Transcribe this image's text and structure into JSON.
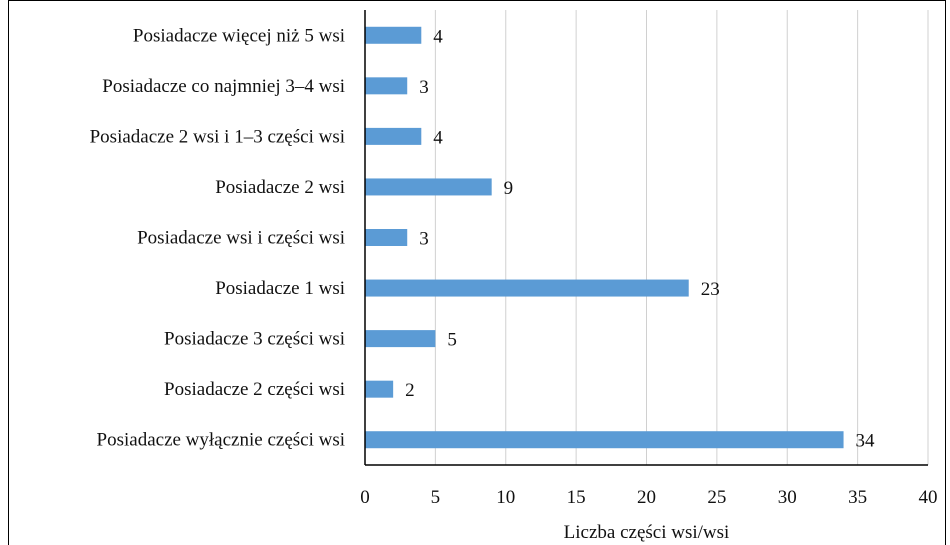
{
  "chart_data": {
    "type": "bar",
    "orientation": "horizontal",
    "categories": [
      "Posiadacze więcej niż 5 wsi",
      "Posiadacze co najmniej 3–4 wsi",
      "Posiadacze 2 wsi i 1–3 części wsi",
      "Posiadacze 2 wsi",
      "Posiadacze wsi i części wsi",
      "Posiadacze 1 wsi",
      "Posiadacze 3 części wsi",
      "Posiadacze 2 części wsi",
      "Posiadacze wyłącznie części wsi"
    ],
    "values": [
      4,
      3,
      4,
      9,
      3,
      23,
      5,
      2,
      34
    ],
    "title": "",
    "xlabel": "Liczba części wsi/wsi",
    "ylabel": "",
    "xlim": [
      0,
      40
    ],
    "xticks": [
      "0",
      "5",
      "10",
      "15",
      "20",
      "25",
      "30",
      "35",
      "40"
    ],
    "grid": "vertical",
    "legend": "none",
    "colors": {
      "bar": "#5b9bd5",
      "grid": "#d0d0d0",
      "axis": "#000000",
      "frame": "#000000"
    }
  }
}
